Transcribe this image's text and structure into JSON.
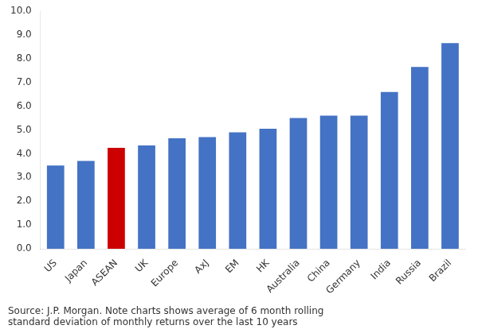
{
  "chart_data": {
    "type": "bar",
    "categories": [
      "US",
      "Japan",
      "ASEAN",
      "UK",
      "Europe",
      "AxJ",
      "EM",
      "HK",
      "Australia",
      "China",
      "Germany",
      "India",
      "Russia",
      "Brazil"
    ],
    "values": [
      3.5,
      3.7,
      4.25,
      4.35,
      4.65,
      4.7,
      4.9,
      5.05,
      5.5,
      5.6,
      5.6,
      6.6,
      7.65,
      8.65
    ],
    "colors": [
      "#4472c4",
      "#4472c4",
      "#cc0000",
      "#4472c4",
      "#4472c4",
      "#4472c4",
      "#4472c4",
      "#4472c4",
      "#4472c4",
      "#4472c4",
      "#4472c4",
      "#4472c4",
      "#4472c4",
      "#4472c4"
    ],
    "ylim": [
      0,
      10.0
    ],
    "yticks": [
      {
        "value": 0.0,
        "label": "0.0"
      },
      {
        "value": 1.0,
        "label": "1.0"
      },
      {
        "value": 2.0,
        "label": "2.0"
      },
      {
        "value": 3.0,
        "label": "3.0"
      },
      {
        "value": 4.0,
        "label": "4.0"
      },
      {
        "value": 5.0,
        "label": "5.0"
      },
      {
        "value": 6.0,
        "label": "6.0"
      },
      {
        "value": 7.0,
        "label": "7.0"
      },
      {
        "value": 8.0,
        "label": "8.0"
      },
      {
        "value": 9.0,
        "label": "9.0"
      },
      {
        "value": 10.0,
        "label": "10.0"
      }
    ],
    "annotation": "Source: J.P. Morgan. Note charts shows average of 6 month rolling\nstandard deviation of monthly returns over the last 10 years",
    "grid": false
  }
}
